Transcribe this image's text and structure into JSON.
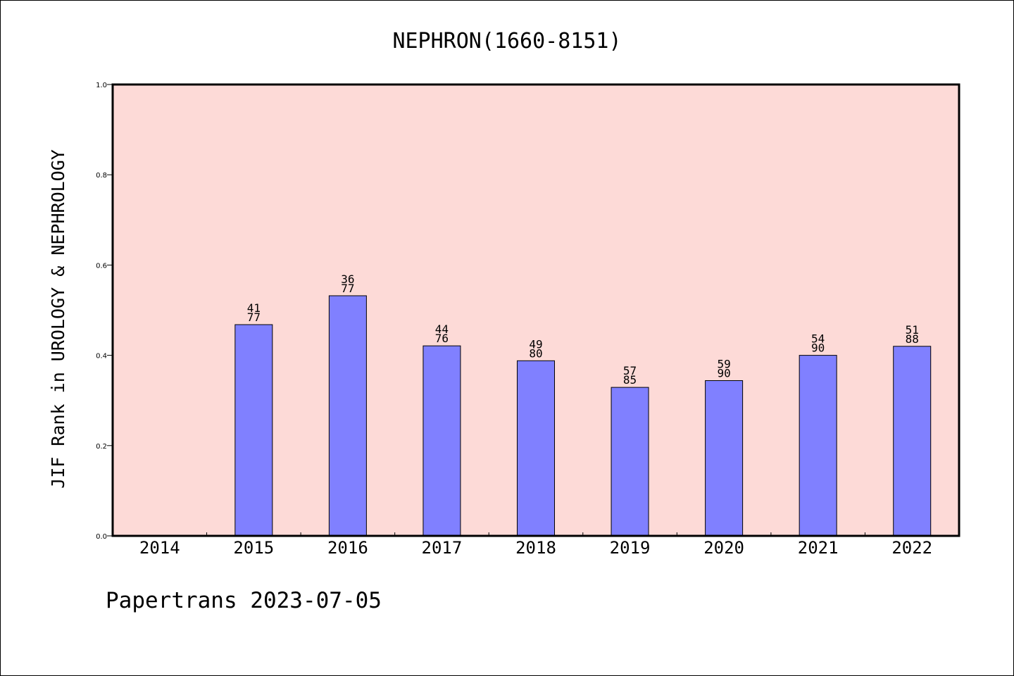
{
  "footer": {
    "text": "Papertrans 2023-07-05"
  },
  "colors": {
    "plot_background": "#fddad7",
    "bar_fill": "#8080ff",
    "bar_stroke": "#000000",
    "axis": "#000000"
  },
  "chart_data": {
    "type": "bar",
    "title": "NEPHRON(1660-8151)",
    "xlabel": "",
    "ylabel": "JIF Rank in UROLOGY & NEPHROLOGY",
    "ylim": [
      0,
      1.0
    ],
    "yticks": [
      "0.0",
      "0.2",
      "0.4",
      "0.6",
      "0.8",
      "1.0"
    ],
    "grid": false,
    "legend": "none",
    "categories": [
      "2014",
      "2015",
      "2016",
      "2017",
      "2018",
      "2019",
      "2020",
      "2021",
      "2022"
    ],
    "values": [
      null,
      0.468,
      0.532,
      0.421,
      0.388,
      0.329,
      0.344,
      0.4,
      0.42
    ],
    "rank_labels": [
      null,
      {
        "rank": "41",
        "total": "77"
      },
      {
        "rank": "36",
        "total": "77"
      },
      {
        "rank": "44",
        "total": "76"
      },
      {
        "rank": "49",
        "total": "80"
      },
      {
        "rank": "57",
        "total": "85"
      },
      {
        "rank": "59",
        "total": "90"
      },
      {
        "rank": "54",
        "total": "90"
      },
      {
        "rank": "51",
        "total": "88"
      }
    ]
  }
}
